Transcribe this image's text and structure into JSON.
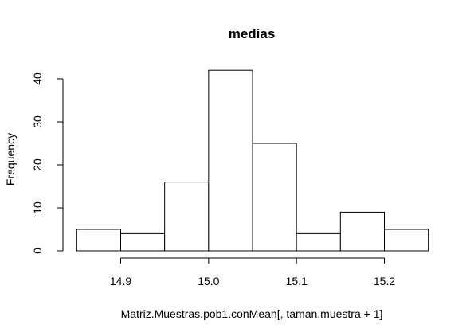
{
  "chart_data": {
    "type": "histogram",
    "title": "medias",
    "xlabel": "Matriz.Muestras.pob1.conMean[, taman.muestra + 1]",
    "ylabel": "Frequency",
    "bins": [
      {
        "start": 14.85,
        "end": 14.9,
        "count": 5
      },
      {
        "start": 14.9,
        "end": 14.95,
        "count": 4
      },
      {
        "start": 14.95,
        "end": 15.0,
        "count": 16
      },
      {
        "start": 15.0,
        "end": 15.05,
        "count": 42
      },
      {
        "start": 15.05,
        "end": 15.1,
        "count": 25
      },
      {
        "start": 15.1,
        "end": 15.15,
        "count": 4
      },
      {
        "start": 15.15,
        "end": 15.2,
        "count": 9
      },
      {
        "start": 15.2,
        "end": 15.25,
        "count": 5
      }
    ],
    "x_ticks": [
      "14.9",
      "15.0",
      "15.1",
      "15.2"
    ],
    "y_ticks": [
      "0",
      "10",
      "20",
      "30",
      "40"
    ],
    "bar_fill": "#ffffff",
    "bar_stroke": "#000000",
    "grid": false,
    "legend": "none"
  }
}
